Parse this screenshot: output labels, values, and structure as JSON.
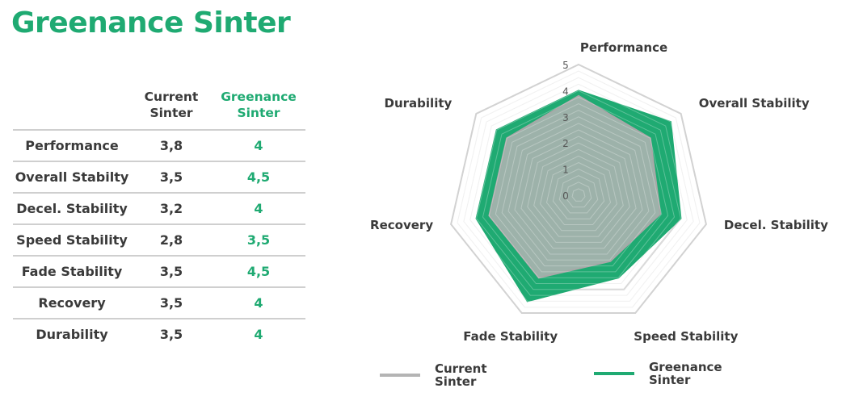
{
  "title": "Greenance Sinter",
  "table": {
    "headers": [
      "",
      "Current Sinter",
      "Greenance Sinter"
    ],
    "rows": [
      {
        "label": "Performance",
        "current": "3,8",
        "greenance": "4"
      },
      {
        "label": "Overall Stabilty",
        "current": "3,5",
        "greenance": "4,5"
      },
      {
        "label": "Decel. Stability",
        "current": "3,2",
        "greenance": "4"
      },
      {
        "label": "Speed Stability",
        "current": "2,8",
        "greenance": "3,5"
      },
      {
        "label": "Fade Stability",
        "current": "3,5",
        "greenance": "4,5"
      },
      {
        "label": "Recovery",
        "current": "3,5",
        "greenance": "4"
      },
      {
        "label": "Durability",
        "current": "3,5",
        "greenance": "4"
      }
    ]
  },
  "chart_data": {
    "type": "radar",
    "categories": [
      "Performance",
      "Overall Stability",
      "Decel. Stability",
      "Speed Stability",
      "Fade Stability",
      "Recovery",
      "Durability"
    ],
    "range": [
      0,
      5
    ],
    "ticks": [
      "0",
      "1",
      "2",
      "3",
      "4",
      "5"
    ],
    "series": [
      {
        "name": "Current Sinter",
        "values": [
          3.8,
          3.5,
          3.2,
          2.8,
          3.5,
          3.5,
          3.5
        ],
        "color": "#b4b4b4"
      },
      {
        "name": "Greenance Sinter",
        "values": [
          4,
          4.5,
          4,
          3.5,
          4.5,
          4,
          4
        ],
        "color": "#1faa72"
      }
    ],
    "legend_position": "bottom",
    "grid": true
  },
  "colors": {
    "accent": "#1faa72",
    "current": "#b4b4b4",
    "grid": "#d2d2d2"
  }
}
